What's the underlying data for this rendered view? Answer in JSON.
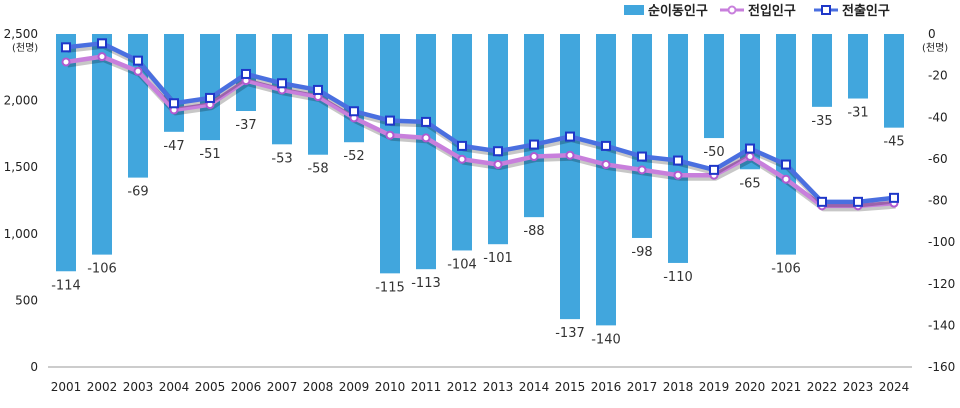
{
  "chart_data": {
    "type": "bar-line-combo",
    "categories": [
      "2001",
      "2002",
      "2003",
      "2004",
      "2005",
      "2006",
      "2007",
      "2008",
      "2009",
      "2010",
      "2011",
      "2012",
      "2013",
      "2014",
      "2015",
      "2016",
      "2017",
      "2018",
      "2019",
      "2020",
      "2021",
      "2022",
      "2023",
      "2024"
    ],
    "left_axis": {
      "unit_label": "(천명)",
      "ylim": [
        0,
        2500
      ],
      "ticks": [
        "0",
        "500",
        "1,000",
        "1,500",
        "2,000",
        "2,500"
      ]
    },
    "right_axis": {
      "unit_label": "(천명)",
      "ylim": [
        -160,
        0
      ],
      "ticks": [
        "0",
        "-20",
        "-40",
        "-60",
        "-80",
        "-100",
        "-120",
        "-140",
        "-160"
      ]
    },
    "series": [
      {
        "name": "순이동인구",
        "kind": "bar",
        "axis": "right",
        "color": "#41a6dd",
        "values": [
          -114,
          -106,
          -69,
          -47,
          -51,
          -37,
          -53,
          -58,
          -52,
          -115,
          -113,
          -104,
          -101,
          -88,
          -137,
          -140,
          -98,
          -110,
          -50,
          -65,
          -106,
          -35,
          -31,
          -45
        ],
        "labels": [
          "-114",
          "-106",
          "-69",
          "-47",
          "-51",
          "-37",
          "-53",
          "-58",
          "-52",
          "-115",
          "-113",
          "-104",
          "-101",
          "-88",
          "-137",
          "-140",
          "-98",
          "-110",
          "-50",
          "-65",
          "-106",
          "-35",
          "-31",
          "-45"
        ]
      },
      {
        "name": "전입인구",
        "kind": "line",
        "axis": "left",
        "color": "#c87fdc",
        "values": [
          2290,
          2330,
          2220,
          1930,
          1970,
          2150,
          2080,
          2030,
          1870,
          1740,
          1720,
          1560,
          1520,
          1580,
          1590,
          1520,
          1480,
          1440,
          1440,
          1580,
          1410,
          1210,
          1210,
          1230
        ]
      },
      {
        "name": "전출인구",
        "kind": "line",
        "axis": "left",
        "color": "#4a6fe0",
        "values": [
          2400,
          2430,
          2300,
          1980,
          2020,
          2200,
          2130,
          2080,
          1920,
          1850,
          1840,
          1660,
          1620,
          1670,
          1730,
          1660,
          1580,
          1550,
          1480,
          1640,
          1520,
          1240,
          1240,
          1270
        ]
      }
    ],
    "legend": {
      "position": "top-right"
    }
  }
}
